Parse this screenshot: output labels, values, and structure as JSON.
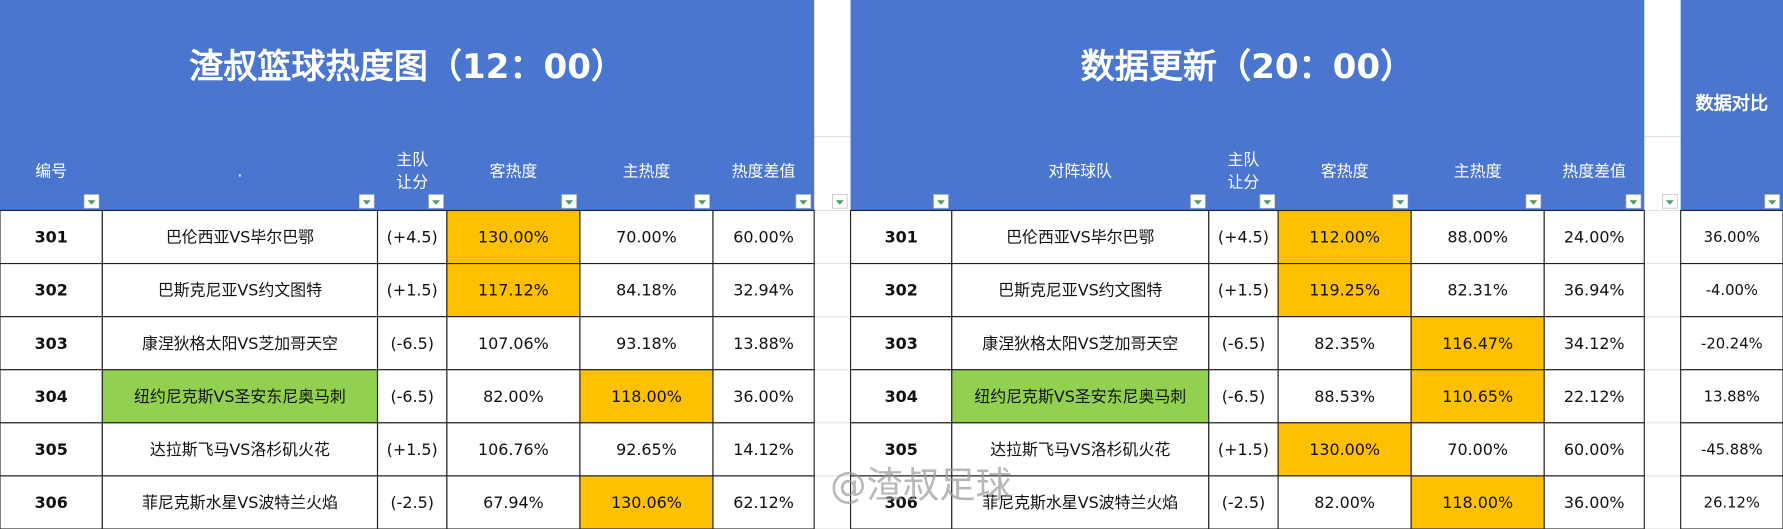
{
  "left": {
    "title": "渣叔篮球热度图（12：00）",
    "headers": [
      "编号",
      ".",
      [
        "主队",
        "让分"
      ],
      "客热度",
      "主热度",
      "热度差值"
    ],
    "rows": [
      [
        "301",
        "巴伦西亚VS毕尔巴鄂",
        "(+4.5)",
        "130.00%",
        "70.00%",
        "60.00%"
      ],
      [
        "302",
        "巴斯克尼亚VS约文图特",
        "(+1.5)",
        "117.12%",
        "84.18%",
        "32.94%"
      ],
      [
        "303",
        "康涅狄格太阳VS芝加哥天空",
        "(-6.5)",
        "107.06%",
        "93.18%",
        "13.88%"
      ],
      [
        "304",
        "纽约尼克斯VS圣安东尼奥马刺",
        "(-6.5)",
        "82.00%",
        "118.00%",
        "36.00%"
      ],
      [
        "305",
        "达拉斯飞马VS洛杉矶火花",
        "(+1.5)",
        "106.76%",
        "92.65%",
        "14.12%"
      ],
      [
        "306",
        "菲尼克斯水星VS波特兰火焰",
        "(-2.5)",
        "67.94%",
        "130.06%",
        "62.12%"
      ]
    ]
  },
  "right": {
    "title": "数据更新（20：00）",
    "headers": [
      "对阵球队",
      [
        "主队",
        "让分"
      ],
      "客热度",
      "主热度",
      "热度差值"
    ],
    "rows": [
      [
        "301",
        "巴伦西亚VS毕尔巴鄂",
        "(+4.5)",
        "112.00%",
        "88.00%",
        "24.00%"
      ],
      [
        "302",
        "巴斯克尼亚VS约文图特",
        "(+1.5)",
        "119.25%",
        "82.31%",
        "36.94%"
      ],
      [
        "303",
        "康涅狄格太阳VS芝加哥天空",
        "(-6.5)",
        "82.35%",
        "116.47%",
        "34.12%"
      ],
      [
        "304",
        "纽约尼克斯VS圣安东尼奥马刺",
        "(-6.5)",
        "88.53%",
        "110.65%",
        "22.12%"
      ],
      [
        "305",
        "达拉斯飞马VS洛杉矶火花",
        "(+1.5)",
        "130.00%",
        "70.00%",
        "60.00%"
      ],
      [
        "306",
        "菲尼克斯水星VS波特兰火焰",
        "(-2.5)",
        "82.00%",
        "118.00%",
        "36.00%"
      ]
    ]
  },
  "compare": {
    "header": "数据对比",
    "values": [
      "36.00%",
      "-4.00%",
      "-20.24%",
      "13.88%",
      "-45.88%",
      "26.12%"
    ]
  },
  "watermark": "@渣叔足球"
}
